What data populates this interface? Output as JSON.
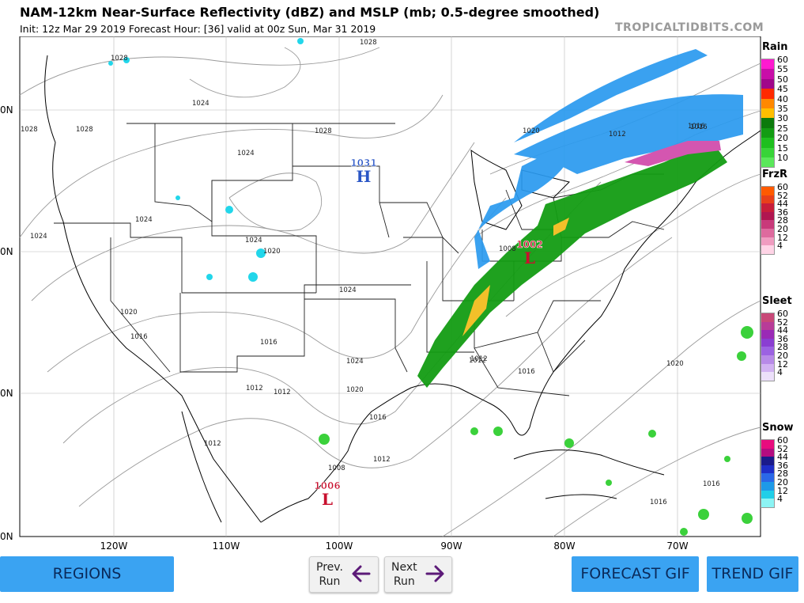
{
  "header": {
    "title": "NAM-12km Near-Surface Reflectivity (dBZ) and MSLP (mb; 0.5-degree smoothed)",
    "subtitle": "Init: 12z Mar 29 2019   Forecast Hour: [36]   valid at 00z Sun, Mar 31 2019",
    "credit": "TROPICALTIDBITS.COM"
  },
  "map": {
    "lon_labels": [
      "120W",
      "110W",
      "100W",
      "90W",
      "80W",
      "70W"
    ],
    "lat_labels": [
      "0N",
      "0N",
      "0N",
      "0N"
    ],
    "pressure_centers": [
      {
        "value": "1031",
        "letter": "H",
        "color": "#2a56c6"
      },
      {
        "value": "1002",
        "letter": "L",
        "color": "#c8102e"
      },
      {
        "value": "1006",
        "letter": "L",
        "color": "#c8102e"
      }
    ],
    "isobar_labels": [
      "1028",
      "1024",
      "1028",
      "1024",
      "1024",
      "1028",
      "1024",
      "1020",
      "1016",
      "1016",
      "1012",
      "1012",
      "1012",
      "1024",
      "1020",
      "1016",
      "1012",
      "1008",
      "1012",
      "1028",
      "1024",
      "1020",
      "1012",
      "1016",
      "1020",
      "1012",
      "1016",
      "1020",
      "1016",
      "1016",
      "1008",
      "1016",
      "1024",
      "1028"
    ]
  },
  "legends": [
    {
      "title": "Rain",
      "ticks": [
        "60",
        "55",
        "50",
        "45",
        "40",
        "35",
        "30",
        "25",
        "20",
        "15",
        "10"
      ],
      "colors": [
        "#ff1ad0",
        "#c80ea8",
        "#a0078a",
        "#ff2a00",
        "#ff8800",
        "#ffbf00",
        "#0c7a0c",
        "#139c13",
        "#1ebf1e",
        "#38d438",
        "#5ae85a"
      ]
    },
    {
      "title": "FrzR",
      "ticks": [
        "60",
        "52",
        "44",
        "36",
        "28",
        "20",
        "12",
        "4"
      ],
      "colors": [
        "#ff5a00",
        "#e8401a",
        "#c81e3a",
        "#b01650",
        "#c83a7a",
        "#de6a9e",
        "#f09cc0",
        "#ffd4e6"
      ]
    },
    {
      "title": "Sleet",
      "ticks": [
        "60",
        "52",
        "44",
        "36",
        "28",
        "20",
        "12",
        "4"
      ],
      "colors": [
        "#c84878",
        "#b83c98",
        "#9a2ab6",
        "#8a3ed2",
        "#9c62e2",
        "#b88ae8",
        "#d2b2f2",
        "#ece0fa"
      ]
    },
    {
      "title": "Snow",
      "ticks": [
        "60",
        "52",
        "44",
        "36",
        "28",
        "20",
        "12",
        "4"
      ],
      "colors": [
        "#e80c7e",
        "#b40c80",
        "#1a1a8a",
        "#1e2ec8",
        "#2a68e8",
        "#1e9ae8",
        "#20cfe8",
        "#8cf4f4"
      ]
    }
  ],
  "buttons": {
    "regions": "REGIONS",
    "prev_line1": "Prev.",
    "prev_line2": "Run",
    "next_line1": "Next",
    "next_line2": "Run",
    "forecast_gif": "FORECAST GIF",
    "trend_gif": "TREND GIF"
  },
  "colors": {
    "button_blue": "#3aa3f2",
    "arrow_purple": "#5c1a78",
    "rain_green": "#139c13",
    "snow_blue": "#2a9aef"
  }
}
